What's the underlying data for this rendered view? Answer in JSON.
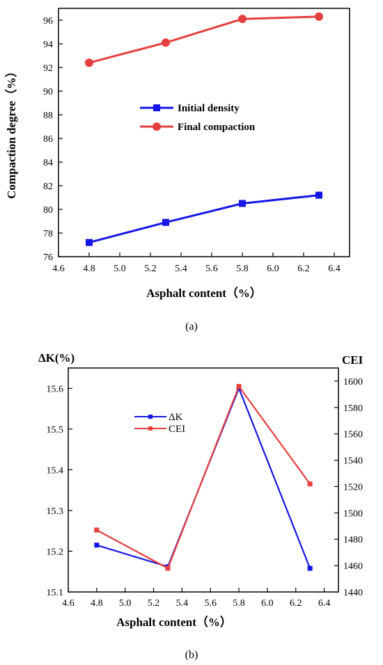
{
  "chart_data": [
    {
      "type": "line",
      "panel_label": "(a)",
      "xlabel": "Asphalt content（%）",
      "ylabel": "Compaction degree（%）",
      "xlim": [
        4.6,
        6.5
      ],
      "ylim": [
        76,
        97
      ],
      "xticks": [
        "4.6",
        "4.8",
        "5.0",
        "5.2",
        "5.4",
        "5.6",
        "5.8",
        "6.0",
        "6.2",
        "6.4"
      ],
      "yticks": [
        "76",
        "78",
        "80",
        "82",
        "84",
        "86",
        "88",
        "90",
        "92",
        "94",
        "96"
      ],
      "legend_position": "center-right",
      "series": [
        {
          "name": "Initial density",
          "color": "#1515e6",
          "marker": "square",
          "x": [
            4.8,
            5.3,
            5.8,
            6.3
          ],
          "y": [
            77.2,
            78.9,
            80.5,
            81.2
          ]
        },
        {
          "name": "Final compaction",
          "color": "#e53e3e",
          "marker": "circle",
          "x": [
            4.8,
            5.3,
            5.8,
            6.3
          ],
          "y": [
            92.4,
            94.1,
            96.1,
            96.3
          ]
        }
      ]
    },
    {
      "type": "line",
      "panel_label": "(b)",
      "xlabel": "Asphalt content（%）",
      "ylabel_left": "ΔK(%)",
      "ylabel_right": "CEI",
      "xlim": [
        4.6,
        6.5
      ],
      "ylim_left": [
        15.1,
        15.65
      ],
      "ylim_right": [
        1440,
        1610
      ],
      "xticks": [
        "4.6",
        "4.8",
        "5.0",
        "5.2",
        "5.4",
        "5.6",
        "5.8",
        "6.0",
        "6.2",
        "6.4"
      ],
      "yticks_left": [
        "15.1",
        "15.2",
        "15.3",
        "15.4",
        "15.5",
        "15.6"
      ],
      "yticks_right": [
        "1440",
        "1460",
        "1480",
        "1500",
        "1520",
        "1540",
        "1560",
        "1580",
        "1600"
      ],
      "legend_position": "top-left",
      "series": [
        {
          "name": "ΔK",
          "axis": "left",
          "color": "#1515e6",
          "marker": "square",
          "x": [
            4.8,
            5.3,
            5.8,
            6.3
          ],
          "y": [
            15.215,
            15.162,
            15.6,
            15.158
          ]
        },
        {
          "name": "CEI",
          "axis": "right",
          "color": "#e53e3e",
          "marker": "square",
          "x": [
            4.8,
            5.3,
            5.8,
            6.3
          ],
          "y": [
            1487,
            1458,
            1596,
            1522
          ]
        }
      ]
    }
  ]
}
